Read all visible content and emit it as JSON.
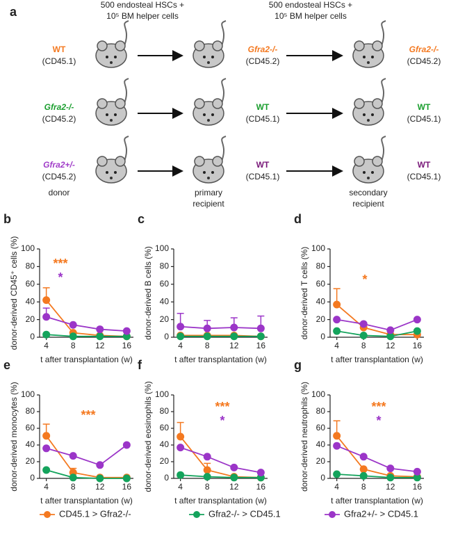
{
  "schematic": {
    "panel": "a",
    "transfers": [
      [
        "500 endosteal HSCs +",
        "10⁵ BM helper cells"
      ],
      [
        "500 endosteal HSCs +",
        "10⁵ BM helper cells"
      ]
    ],
    "rows": [
      {
        "donor": {
          "name": "WT",
          "strain": "(CD45.1)",
          "color": "#f47920"
        },
        "primary": {
          "name": "Gfra2-/-",
          "strain": "(CD45.2)",
          "color": "#f47920"
        },
        "secondary": {
          "name": "Gfra2-/-",
          "strain": "(CD45.2)",
          "color": "#f47920"
        }
      },
      {
        "donor": {
          "name": "Gfra2-/-",
          "strain": "(CD45.2)",
          "color": "#1a9e2e"
        },
        "primary": {
          "name": "WT",
          "strain": "(CD45.1)",
          "color": "#1a9e2e"
        },
        "secondary": {
          "name": "WT",
          "strain": "(CD45.1)",
          "color": "#1a9e2e"
        }
      },
      {
        "donor": {
          "name": "Gfra2+/-",
          "strain": "(CD45.2)",
          "color": "#a03cc8"
        },
        "primary": {
          "name": "WT",
          "strain": "(CD45.1)",
          "color": "#7a1a7a"
        },
        "secondary": {
          "name": "WT",
          "strain": "(CD45.1)",
          "color": "#7a1a7a"
        }
      }
    ],
    "stages": [
      [
        "donor"
      ],
      [
        "primary",
        "recipient"
      ],
      [
        "secondary",
        "recipient"
      ]
    ]
  },
  "chart_data": [
    {
      "type": "line",
      "panel": "b",
      "ylabel": "donor-derived CD45⁺ cells (%)",
      "xlabel": "t after transplantation (w)",
      "x": [
        4,
        8,
        12,
        16
      ],
      "xlim": [
        3,
        17
      ],
      "xticks": [
        4,
        8,
        12,
        16
      ],
      "ylim": [
        0,
        100
      ],
      "yticks": [
        0,
        20,
        40,
        60,
        80,
        100
      ],
      "series": [
        {
          "name": "CD45.1 > Gfra2-/-",
          "color": "#f47920",
          "values": [
            42,
            5,
            2,
            1
          ],
          "errors": [
            14,
            null,
            null,
            null
          ]
        },
        {
          "name": "Gfra2-/- > CD45.1",
          "color": "#14a35c",
          "values": [
            3,
            1,
            1,
            1
          ],
          "errors": [
            null,
            null,
            null,
            null
          ]
        },
        {
          "name": "Gfra2+/- > CD45.1",
          "color": "#9b35c8",
          "values": [
            23,
            14,
            9,
            7
          ],
          "errors": [
            10,
            null,
            null,
            null
          ]
        }
      ],
      "annotations": [
        {
          "text": "***",
          "color": "#f47920"
        },
        {
          "text": "*",
          "color": "#9b35c8"
        }
      ]
    },
    {
      "type": "line",
      "panel": "c",
      "ylabel": "donor-derived B cells (%)",
      "xlabel": "t after transplantation (w)",
      "x": [
        4,
        8,
        12,
        16
      ],
      "xlim": [
        3,
        17
      ],
      "xticks": [
        4,
        8,
        12,
        16
      ],
      "ylim": [
        0,
        100
      ],
      "yticks": [
        0,
        20,
        40,
        60,
        80,
        100
      ],
      "series": [
        {
          "name": "CD45.1 > Gfra2-/-",
          "color": "#f47920",
          "values": [
            2,
            2,
            2,
            1
          ],
          "errors": [
            null,
            null,
            null,
            null
          ]
        },
        {
          "name": "Gfra2-/- > CD45.1",
          "color": "#14a35c",
          "values": [
            1,
            1,
            1,
            1
          ],
          "errors": [
            null,
            null,
            null,
            null
          ]
        },
        {
          "name": "Gfra2+/- > CD45.1",
          "color": "#9b35c8",
          "values": [
            12,
            10,
            11,
            10
          ],
          "errors": [
            15,
            9,
            11,
            14
          ]
        }
      ],
      "annotations": []
    },
    {
      "type": "line",
      "panel": "d",
      "ylabel": "donor-derived T cells (%)",
      "xlabel": "t after transplantation (w)",
      "x": [
        4,
        8,
        12,
        16
      ],
      "xlim": [
        3,
        17
      ],
      "xticks": [
        4,
        8,
        12,
        16
      ],
      "ylim": [
        0,
        100
      ],
      "yticks": [
        0,
        20,
        40,
        60,
        80,
        100
      ],
      "series": [
        {
          "name": "CD45.1 > Gfra2-/-",
          "color": "#f47920",
          "values": [
            37,
            11,
            3,
            3
          ],
          "errors": [
            18,
            null,
            null,
            null
          ]
        },
        {
          "name": "Gfra2-/- > CD45.1",
          "color": "#14a35c",
          "values": [
            7,
            2,
            1,
            7
          ],
          "errors": [
            null,
            null,
            null,
            null
          ]
        },
        {
          "name": "Gfra2+/- > CD45.1",
          "color": "#9b35c8",
          "values": [
            20,
            15,
            8,
            20
          ],
          "errors": [
            null,
            null,
            null,
            null
          ]
        }
      ],
      "annotations": [
        {
          "text": "*",
          "color": "#f47920"
        }
      ]
    },
    {
      "type": "line",
      "panel": "e",
      "ylabel": "donor-derived monocytes (%)",
      "xlabel": "t after transplantation (w)",
      "x": [
        4,
        8,
        12,
        16
      ],
      "xlim": [
        3,
        17
      ],
      "xticks": [
        4,
        8,
        12,
        16
      ],
      "ylim": [
        0,
        100
      ],
      "yticks": [
        0,
        20,
        40,
        60,
        80,
        100
      ],
      "series": [
        {
          "name": "CD45.1 > Gfra2-/-",
          "color": "#f47920",
          "values": [
            51,
            7,
            1,
            1
          ],
          "errors": [
            14,
            5,
            null,
            null
          ]
        },
        {
          "name": "Gfra2-/- > CD45.1",
          "color": "#14a35c",
          "values": [
            10,
            1,
            0,
            0
          ],
          "errors": [
            null,
            null,
            null,
            null
          ]
        },
        {
          "name": "Gfra2+/- > CD45.1",
          "color": "#9b35c8",
          "values": [
            36,
            27,
            16,
            40
          ],
          "errors": [
            null,
            null,
            null,
            null
          ]
        }
      ],
      "annotations": [
        {
          "text": "***",
          "color": "#f47920"
        }
      ]
    },
    {
      "type": "line",
      "panel": "f",
      "ylabel": "donor-derived eosinophils (%)",
      "xlabel": "t after transplantation (w)",
      "x": [
        4,
        8,
        12,
        16
      ],
      "xlim": [
        3,
        17
      ],
      "xticks": [
        4,
        8,
        12,
        16
      ],
      "ylim": [
        0,
        100
      ],
      "yticks": [
        0,
        20,
        40,
        60,
        80,
        100
      ],
      "series": [
        {
          "name": "CD45.1 > Gfra2-/-",
          "color": "#f47920",
          "values": [
            50,
            10,
            2,
            1
          ],
          "errors": [
            17,
            8,
            null,
            null
          ]
        },
        {
          "name": "Gfra2-/- > CD45.1",
          "color": "#14a35c",
          "values": [
            4,
            2,
            1,
            1
          ],
          "errors": [
            null,
            null,
            null,
            null
          ]
        },
        {
          "name": "Gfra2+/- > CD45.1",
          "color": "#9b35c8",
          "values": [
            37,
            26,
            13,
            7
          ],
          "errors": [
            null,
            null,
            null,
            null
          ]
        }
      ],
      "annotations": [
        {
          "text": "***",
          "color": "#f47920"
        },
        {
          "text": "*",
          "color": "#9b35c8"
        }
      ]
    },
    {
      "type": "line",
      "panel": "g",
      "ylabel": "donor-derived neutrophils (%)",
      "xlabel": "t after transplantation (w)",
      "x": [
        4,
        8,
        12,
        16
      ],
      "xlim": [
        3,
        17
      ],
      "xticks": [
        4,
        8,
        12,
        16
      ],
      "ylim": [
        0,
        100
      ],
      "yticks": [
        0,
        20,
        40,
        60,
        80,
        100
      ],
      "series": [
        {
          "name": "CD45.1 > Gfra2-/-",
          "color": "#f47920",
          "values": [
            51,
            11,
            3,
            2
          ],
          "errors": [
            18,
            null,
            null,
            null
          ]
        },
        {
          "name": "Gfra2-/- > CD45.1",
          "color": "#14a35c",
          "values": [
            5,
            3,
            1,
            1
          ],
          "errors": [
            null,
            null,
            null,
            null
          ]
        },
        {
          "name": "Gfra2+/- > CD45.1",
          "color": "#9b35c8",
          "values": [
            39,
            26,
            12,
            8
          ],
          "errors": [
            null,
            null,
            null,
            null
          ]
        }
      ],
      "annotations": [
        {
          "text": "***",
          "color": "#f47920"
        },
        {
          "text": "*",
          "color": "#9b35c8"
        }
      ]
    }
  ]
}
